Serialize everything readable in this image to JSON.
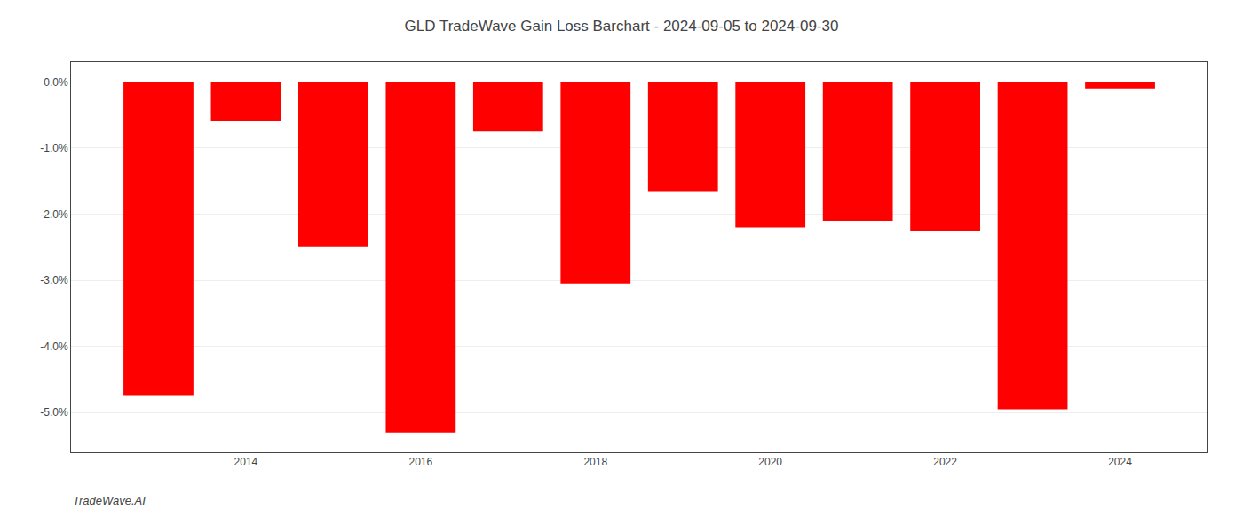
{
  "chart_data": {
    "type": "bar",
    "title": "GLD TradeWave Gain Loss Barchart - 2024-09-05 to 2024-09-30",
    "annotations": [
      "TradeWave.AI"
    ],
    "x": [
      2013,
      2014,
      2015,
      2016,
      2017,
      2018,
      2019,
      2020,
      2021,
      2022,
      2023,
      2024
    ],
    "values": [
      -4.75,
      -0.6,
      -2.5,
      -5.3,
      -0.75,
      -3.05,
      -1.65,
      -2.2,
      -2.1,
      -2.25,
      -4.95,
      -0.1
    ],
    "color": "#ff0000",
    "xlim": [
      2012,
      2025
    ],
    "xticks": [
      2014,
      2016,
      2018,
      2020,
      2022,
      2024
    ],
    "ylim": [
      -5.6,
      0.3
    ],
    "yticks": [
      {
        "value": 0.0,
        "label": "0.0%"
      },
      {
        "value": -1.0,
        "label": "-1.0%"
      },
      {
        "value": -2.0,
        "label": "-2.0%"
      },
      {
        "value": -3.0,
        "label": "-3.0%"
      },
      {
        "value": -4.0,
        "label": "-4.0%"
      },
      {
        "value": -5.0,
        "label": "-5.0%"
      }
    ],
    "grid": true
  }
}
